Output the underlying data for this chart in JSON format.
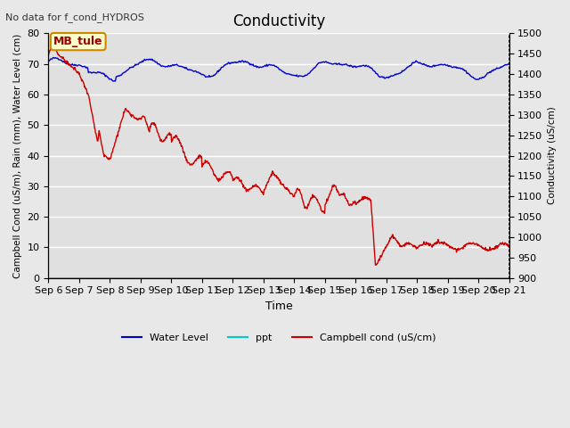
{
  "title": "Conductivity",
  "top_left_text": "No data for f_cond_HYDROS",
  "xlabel": "Time",
  "ylabel_left": "Campbell Cond (uS/m), Rain (mm), Water Level (cm)",
  "ylabel_right": "Conductivity (uS/cm)",
  "ylim_left": [
    0,
    80
  ],
  "ylim_right": [
    900,
    1500
  ],
  "xtick_labels": [
    "Sep 6",
    "Sep 7",
    "Sep 8",
    "Sep 9",
    "Sep 10",
    "Sep 11",
    "Sep 12",
    "Sep 13",
    "Sep 14",
    "Sep 15",
    "Sep 16",
    "Sep 17",
    "Sep 18",
    "Sep 19",
    "Sep 20",
    "Sep 21"
  ],
  "yticks_left": [
    0,
    10,
    20,
    30,
    40,
    50,
    60,
    70,
    80
  ],
  "yticks_right": [
    900,
    950,
    1000,
    1050,
    1100,
    1150,
    1200,
    1250,
    1300,
    1350,
    1400,
    1450,
    1500
  ],
  "legend_entries": [
    "Water Level",
    "ppt",
    "Campbell cond (uS/cm)"
  ],
  "legend_colors": [
    "#0000cc",
    "#00cccc",
    "#cc0000"
  ],
  "annotation_box": "MB_tule",
  "annotation_box_color": "#ffffcc",
  "annotation_box_border": "#cc8800",
  "annotation_text_color": "#990000",
  "fig_bg_color": "#e8e8e8",
  "plot_bg_color": "#e0e0e0",
  "grid_color": "#f0f0f0",
  "title_fontsize": 12,
  "label_fontsize": 8,
  "tick_fontsize": 8
}
